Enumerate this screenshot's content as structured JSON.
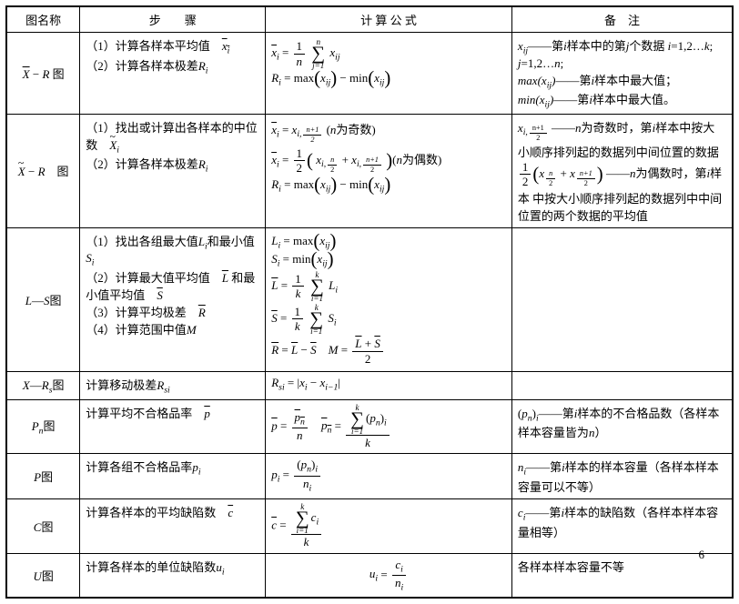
{
  "headers": {
    "name": "图名称",
    "step": "步　　骤",
    "formula": "计 算 公 式",
    "note": "备　注"
  },
  "rows": [
    {
      "name_html": "<span class='ital bar'>X</span> − <span class='ital'>R</span> 图",
      "step_html": "（1）计算各样本平均值　<span class='ital bar'>x<span class='sub'>i</span></span><br>（2）计算各样本极差<span class='ital'>R<span class='sub'>i</span></span>",
      "formula_html": "<div class='math-line'><span class='ital bar'>x</span><span class='sub ital'>i</span> = <span class='frac'><span class='num'>1</span><span class='den ital'>n</span></span> <span class='sum'><span class='top ital'>n</span><span class='sig'>∑</span><span class='bot ital'>j=1</span></span> <span class='ital'>x<span class='sub'>ij</span></span></div><div class='math-line'><span class='ital'>R<span class='sub'>i</span></span> = max<span class='bigp'>(</span><span class='ital'>x<span class='sub'>ij</span></span><span class='bigp'>)</span> − min<span class='bigp'>(</span><span class='ital'>x<span class='sub'>ij</span></span><span class='bigp'>)</span></div>",
      "note_html": "<span class='ital'>x<span class='sub'>ij</span></span>——第<span class='ital'>i</span>样本中的第<span class='ital'>j</span>个数据 <span class='ital'>i</span>=1,2…<span class='ital'>k</span>;<br><span class='ital'>j</span>=1,2…<span class='ital'>n</span>;<br><span class='ital'>max(x<span class='sub'>ij</span>)</span>——第<span class='ital'>i</span>样本中最大值；<br><span class='ital'>min(x<span class='sub'>ij</span>)</span>——第<span class='ital'>i</span>样本中最大值。"
    },
    {
      "name_html": "<span class='ital tilde-over'>X</span> − <span class='ital'>R</span>　图",
      "step_html": "（1）找出或计算出各样本的中位数　<span class='ital tilde-over'>X<span class='sub'>i</span></span><br>（2）计算各样本极差<span class='ital'>R<span class='sub'>i</span></span>",
      "formula_html": "<div class='math-line'><span class='ital bar'>x</span><span class='sub ital'>i</span> = <span class='ital'>x</span><span class='sub ital'>i,<span class='frac small'><span class='num'>n+1</span><span class='den'>2</span></span></span> (<span class='ital'>n</span>为奇数)</div><div class='math-line'><span class='ital bar'>x</span><span class='sub ital'>i</span> = <span class='frac'><span class='num'>1</span><span class='den'>2</span></span><span class='bigp'>(</span> <span class='ital'>x</span><span class='sub'><span class='ital'>i</span>,<span class='frac small'><span class='num ital'>n</span><span class='den'>2</span></span></span> + <span class='ital'>x</span><span class='sub'><span class='ital'>i</span>,<span class='frac small'><span class='num ital'>n+1</span><span class='den'>2</span></span></span> <span class='bigp'>)</span>(<span class='ital'>n</span>为偶数)</div><div class='math-line'><span class='ital'>R<span class='sub'>i</span></span> = max<span class='bigp'>(</span><span class='ital'>x<span class='sub'>ij</span></span><span class='bigp'>)</span> − min<span class='bigp'>(</span><span class='ital'>x<span class='sub'>ij</span></span><span class='bigp'>)</span></div>",
      "note_html": "<span class='ital'>x</span><span class='sub'><span class='ital'>i</span>,<span class='frac small'><span class='num'>n+1</span><span class='den'>2</span></span></span> ——<span class='ital'>n</span>为奇数时，第<span class='ital'>i</span>样本中按大小顺序排列起的数据列中间位置的数据<br><span class='frac'><span class='num'>1</span><span class='den'>2</span></span><span class='bigp'>(</span><span class='ital'>x</span><span class='sub'><span class='frac small'><span class='num ital'>n</span><span class='den'>2</span></span></span> + <span class='ital'>x</span><span class='sub'><span class='frac small'><span class='num ital'>n+1</span><span class='den'>2</span></span></span><span class='bigp'>)</span> ——<span class='ital'>n</span>为偶数时，第<span class='ital'>i</span>样本 中按大小顺序排列起的数据列中中间位置的两个数据的平均值"
    },
    {
      "name_html": "<span class='ital'>L</span>—<span class='ital'>S</span>图",
      "step_html": "（1）找出各组最大值<span class='ital'>L<span class='sub'>i</span></span>和最小值<span class='ital'>S<span class='sub'>i</span></span><br>（2）计算最大值平均值　<span class='ital bar'>L</span> 和最小值平均值　<span class='ital bar'>S</span><br>（3）计算平均极差　<span class='ital bar'>R</span><br>（4）计算范围中值<span class='ital'>M</span>",
      "formula_html": "<div class='math-line'><span class='ital'>L<span class='sub'>i</span></span> = max<span class='bigp'>(</span><span class='ital'>x<span class='sub'>ij</span></span><span class='bigp'>)</span></div><div class='math-line'><span class='ital'>S<span class='sub'>i</span></span> = min<span class='bigp'>(</span><span class='ital'>x<span class='sub'>ij</span></span><span class='bigp'>)</span></div><div class='math-line'><span class='ital bar'>L</span> = <span class='frac'><span class='num'>1</span><span class='den ital'>k</span></span> <span class='sum'><span class='top ital'>k</span><span class='sig'>∑</span><span class='bot ital'>i=1</span></span> <span class='ital'>L<span class='sub'>i</span></span></div><div class='math-line'><span class='ital bar'>S</span> = <span class='frac'><span class='num'>1</span><span class='den ital'>k</span></span> <span class='sum'><span class='top ital'>k</span><span class='sig'>∑</span><span class='bot ital'>i=1</span></span> <span class='ital'>S<span class='sub'>i</span></span></div><div class='math-line'><span class='ital bar'>R</span> = <span class='ital bar'>L</span> − <span class='ital bar'>S</span>　<span class='ital'>M</span> = <span class='frac'><span class='num'><span class='ital bar'>L</span> + <span class='ital bar'>S</span></span><span class='den'>2</span></span></div>",
      "note_html": ""
    },
    {
      "name_html": "<span class='ital'>X</span>—<span class='ital'>R<span class='sub'>s</span></span>图",
      "step_html": "计算移动极差<span class='ital'>R<span class='sub'>si</span></span>",
      "formula_html": "<span class='ital'>R<span class='sub'>si</span></span> = |<span class='ital'>x<span class='sub'>i</span></span> − <span class='ital'>x<span class='sub'>i−1</span></span>|",
      "note_html": ""
    },
    {
      "name_html": "<span class='ital'>P<span class='sub'>n</span></span>图",
      "step_html": "计算平均不合格品率　<span class='ital bar'>p</span>",
      "formula_html": "<span class='ital bar'>p</span> = <span class='frac'><span class='num'><span class='ital bar'>p<span class='sub'>n</span></span></span><span class='den ital'>n</span></span>　<span class='ital bar'>p<span class='sub'>n</span></span> = <span class='frac'><span class='num'><span class='sum'><span class='top ital'>k</span><span class='sig'>∑</span><span class='bot ital'>i=1</span></span>(<span class='ital'>p<span class='sub'>n</span></span>)<span class='sub ital'>i</span></span><span class='den ital'>k</span></span>",
      "note_html": "(<span class='ital'>p<span class='sub'>n</span></span>)<span class='sub ital'>i</span>——第<span class='ital'>i</span>样本的不合格品数（各样本样本容量皆为<span class='ital'>n</span>）"
    },
    {
      "name_html": "<span class='ital'>P</span>图",
      "step_html": "计算各组不合格品率<span class='ital'>p<span class='sub'>i</span></span>",
      "formula_html": "<span class='ital'>p<span class='sub'>i</span></span> = <span class='frac'><span class='num'>(<span class='ital'>p<span class='sub'>n</span></span>)<span class='sub ital'>i</span></span><span class='den ital'>n<span class='sub'>i</span></span></span>",
      "note_html": "<span class='ital'>n<span class='sub'>i</span></span>——第<span class='ital'>i</span>样本的样本容量（各样本样本容量可以不等）"
    },
    {
      "name_html": "<span class='ital'>C</span>图",
      "step_html": "计算各样本的平均缺陷数　<span class='ital bar'>c</span>",
      "formula_html": "<span class='ital bar'>c</span> = <span class='frac'><span class='num'><span class='sum'><span class='top ital'>k</span><span class='sig'>∑</span><span class='bot ital'>i=1</span></span><span class='ital'>c<span class='sub'>i</span></span></span><span class='den ital'>k</span></span>",
      "note_html": "<span class='ital'>c<span class='sub'>i</span></span>——第<span class='ital'>i</span>样本的缺陷数（各样本样本容量相等）"
    },
    {
      "name_html": "<span class='ital'>U</span>图",
      "step_html": "计算各样本的单位缺陷数<span class='ital'>u<span class='sub'>i</span></span>",
      "formula_html": "<div style='text-align:center'><span class='ital'>u<span class='sub'>i</span></span> = <span class='frac'><span class='num ital'>c<span class='sub'>i</span></span><span class='den ital'>n<span class='sub'>i</span></span></span></div>",
      "note_html": "各样本样本容量不等"
    }
  ],
  "page_number": "6"
}
